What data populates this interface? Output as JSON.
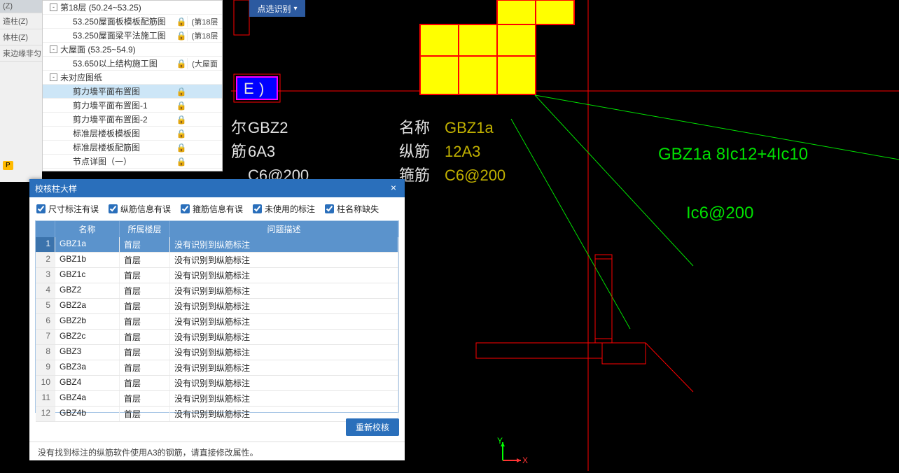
{
  "sidebar_left": {
    "items": [
      {
        "label": "(Z)"
      },
      {
        "label": "造柱(Z)"
      },
      {
        "label": "体柱(Z)"
      },
      {
        "label": "束边缘非匀"
      }
    ],
    "badge": "P"
  },
  "dropbtn": {
    "label": "点选识别"
  },
  "tree": {
    "rows": [
      {
        "indent": 0,
        "expand": "-",
        "name": "第18层 (50.24~53.25)",
        "lock": "",
        "info": ""
      },
      {
        "indent": 1,
        "name": "53.250屋面板模板配筋图",
        "lock": "🔒",
        "info": "(第18层"
      },
      {
        "indent": 1,
        "name": "53.250屋面梁平法施工图",
        "lock": "🔒",
        "info": "(第18层"
      },
      {
        "indent": 0,
        "expand": "-",
        "name": "大屋面 (53.25~54.9)",
        "lock": "",
        "info": ""
      },
      {
        "indent": 1,
        "name": "53.650以上结构施工图",
        "lock": "🔒",
        "info": "(大屋面"
      },
      {
        "indent": 0,
        "expand": "-",
        "name": "未对应图纸",
        "lock": "",
        "info": ""
      },
      {
        "indent": 1,
        "name": "剪力墙平面布置图",
        "lock": "🔒",
        "info": "",
        "selected": true
      },
      {
        "indent": 1,
        "name": "剪力墙平面布置图-1",
        "lock": "🔒",
        "info": ""
      },
      {
        "indent": 1,
        "name": "剪力墙平面布置图-2",
        "lock": "🔒",
        "info": ""
      },
      {
        "indent": 1,
        "name": "标准层楼板模板图",
        "lock": "🔒",
        "info": ""
      },
      {
        "indent": 1,
        "name": "标准层楼板配筋图",
        "lock": "🔒",
        "info": ""
      },
      {
        "indent": 1,
        "name": "节点详图（一）",
        "lock": "🔒",
        "info": ""
      }
    ]
  },
  "dlg": {
    "title": "校核柱大样",
    "checks": [
      {
        "label": "尺寸标注有误",
        "checked": true
      },
      {
        "label": "纵筋信息有误",
        "checked": true
      },
      {
        "label": "箍筋信息有误",
        "checked": true
      },
      {
        "label": "未使用的标注",
        "checked": true
      },
      {
        "label": "柱名称缺失",
        "checked": true
      }
    ],
    "cols": {
      "num": "",
      "name": "名称",
      "floor": "所属楼层",
      "desc": "问题描述"
    },
    "rows": [
      {
        "n": "GBZ1a",
        "f": "首层",
        "d": "没有识别到纵筋标注",
        "sel": true
      },
      {
        "n": "GBZ1b",
        "f": "首层",
        "d": "没有识别到纵筋标注"
      },
      {
        "n": "GBZ1c",
        "f": "首层",
        "d": "没有识别到纵筋标注"
      },
      {
        "n": "GBZ2",
        "f": "首层",
        "d": "没有识别到纵筋标注"
      },
      {
        "n": "GBZ2a",
        "f": "首层",
        "d": "没有识别到纵筋标注"
      },
      {
        "n": "GBZ2b",
        "f": "首层",
        "d": "没有识别到纵筋标注"
      },
      {
        "n": "GBZ2c",
        "f": "首层",
        "d": "没有识别到纵筋标注"
      },
      {
        "n": "GBZ3",
        "f": "首层",
        "d": "没有识别到纵筋标注"
      },
      {
        "n": "GBZ3a",
        "f": "首层",
        "d": "没有识别到纵筋标注"
      },
      {
        "n": "GBZ4",
        "f": "首层",
        "d": "没有识别到纵筋标注"
      },
      {
        "n": "GBZ4a",
        "f": "首层",
        "d": "没有识别到纵筋标注"
      },
      {
        "n": "GBZ4b",
        "f": "首层",
        "d": "没有识别到纵筋标注"
      }
    ],
    "btn": "重新校核",
    "hint": "没有找到标注的纵筋软件使用A3的钢筋，请直接修改属性。"
  },
  "cad": {
    "blue_label": "E",
    "yellow_shape": {
      "color": "#ffff00"
    },
    "left_block": [
      {
        "label": "尔",
        "value": "GBZ2"
      },
      {
        "label": "筋",
        "value": "6A3"
      },
      {
        "label": "",
        "value": "C6@200"
      }
    ],
    "right_block": [
      {
        "label": "名称",
        "value": "GBZ1a",
        "color": "#c0b000"
      },
      {
        "label": "纵筋",
        "value": "12A3",
        "color": "#c0b000"
      },
      {
        "label": "箍筋",
        "value": "C6@200",
        "color": "#c0b000"
      }
    ],
    "green_text": [
      "GBZ1a 8Ic12+4Ic10",
      "Ic6@200"
    ],
    "axis": {
      "x": "X",
      "y": "Y"
    }
  }
}
